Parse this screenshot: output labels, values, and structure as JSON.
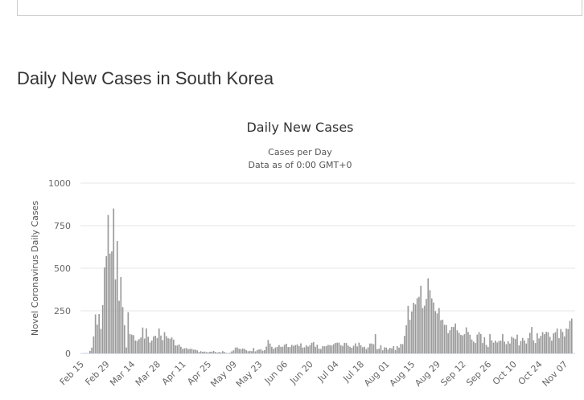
{
  "page_title": "Daily New Cases in South Korea",
  "chart_data": {
    "type": "bar",
    "title": "Daily New Cases",
    "subtitle": [
      "Cases per Day",
      "Data as of 0:00 GMT+0"
    ],
    "ylabel": "Novel Coronavirus Daily Cases",
    "xlabel": "",
    "ylim": [
      0,
      1000
    ],
    "yticks": [
      "0",
      "250",
      "500",
      "750",
      "1000"
    ],
    "ytick_values": [
      0,
      250,
      500,
      750,
      1000
    ],
    "start_date": "Feb 15",
    "xticks": [
      "Feb 15",
      "Feb 29",
      "Mar 14",
      "Mar 28",
      "Apr 11",
      "Apr 25",
      "May 09",
      "May 23",
      "Jun 06",
      "Jun 20",
      "Jul 04",
      "Jul 18",
      "Aug 01",
      "Aug 15",
      "Aug 29",
      "Sep 12",
      "Sep 26",
      "Oct 10",
      "Oct 24",
      "Nov 07"
    ],
    "xtick_every_days": 14,
    "bar_color": "#999999",
    "grid": true,
    "values": [
      0,
      1,
      1,
      1,
      15,
      34,
      100,
      229,
      169,
      231,
      144,
      284,
      505,
      571,
      813,
      586,
      599,
      851,
      435,
      660,
      309,
      448,
      272,
      165,
      35,
      242,
      114,
      110,
      107,
      76,
      74,
      84,
      93,
      152,
      87,
      147,
      98,
      64,
      76,
      100,
      104,
      91,
      146,
      105,
      78,
      125,
      101,
      89,
      86,
      94,
      81,
      47,
      47,
      53,
      39,
      27,
      30,
      32,
      25,
      27,
      27,
      22,
      22,
      18,
      8,
      13,
      9,
      11,
      8,
      6,
      10,
      10,
      14,
      9,
      4,
      9,
      6,
      13,
      8,
      3,
      2,
      4,
      12,
      18,
      34,
      35,
      27,
      26,
      29,
      27,
      19,
      13,
      15,
      13,
      32,
      12,
      20,
      23,
      25,
      16,
      19,
      40,
      79,
      58,
      39,
      27,
      35,
      38,
      49,
      39,
      39,
      51,
      57,
      37,
      38,
      50,
      45,
      49,
      53,
      43,
      59,
      34,
      36,
      48,
      40,
      49,
      62,
      67,
      39,
      51,
      28,
      26,
      42,
      42,
      43,
      50,
      49,
      46,
      54,
      61,
      63,
      63,
      48,
      44,
      62,
      61,
      46,
      39,
      33,
      45,
      59,
      41,
      63,
      48,
      36,
      39,
      26,
      36,
      58,
      58,
      54,
      113,
      25,
      28,
      48,
      18,
      36,
      34,
      23,
      33,
      30,
      43,
      20,
      43,
      34,
      56,
      54,
      103,
      166,
      279,
      197,
      246,
      297,
      288,
      324,
      332,
      397,
      266,
      280,
      320,
      441,
      371,
      323,
      299,
      248,
      235,
      267,
      195,
      198,
      168,
      167,
      119,
      136,
      156,
      155,
      176,
      136,
      121,
      109,
      106,
      113,
      153,
      126,
      110,
      82,
      70,
      61,
      110,
      125,
      114,
      61,
      95,
      50,
      38,
      113,
      77,
      63,
      75,
      64,
      73,
      75,
      114,
      69,
      54,
      72,
      58,
      98,
      91,
      84,
      110,
      47,
      73,
      91,
      76,
      58,
      89,
      121,
      155,
      77,
      61,
      119,
      88,
      103,
      125,
      113,
      127,
      124,
      97,
      75,
      118,
      125,
      146,
      89,
      143,
      126,
      100,
      146,
      143,
      191,
      205
    ]
  }
}
